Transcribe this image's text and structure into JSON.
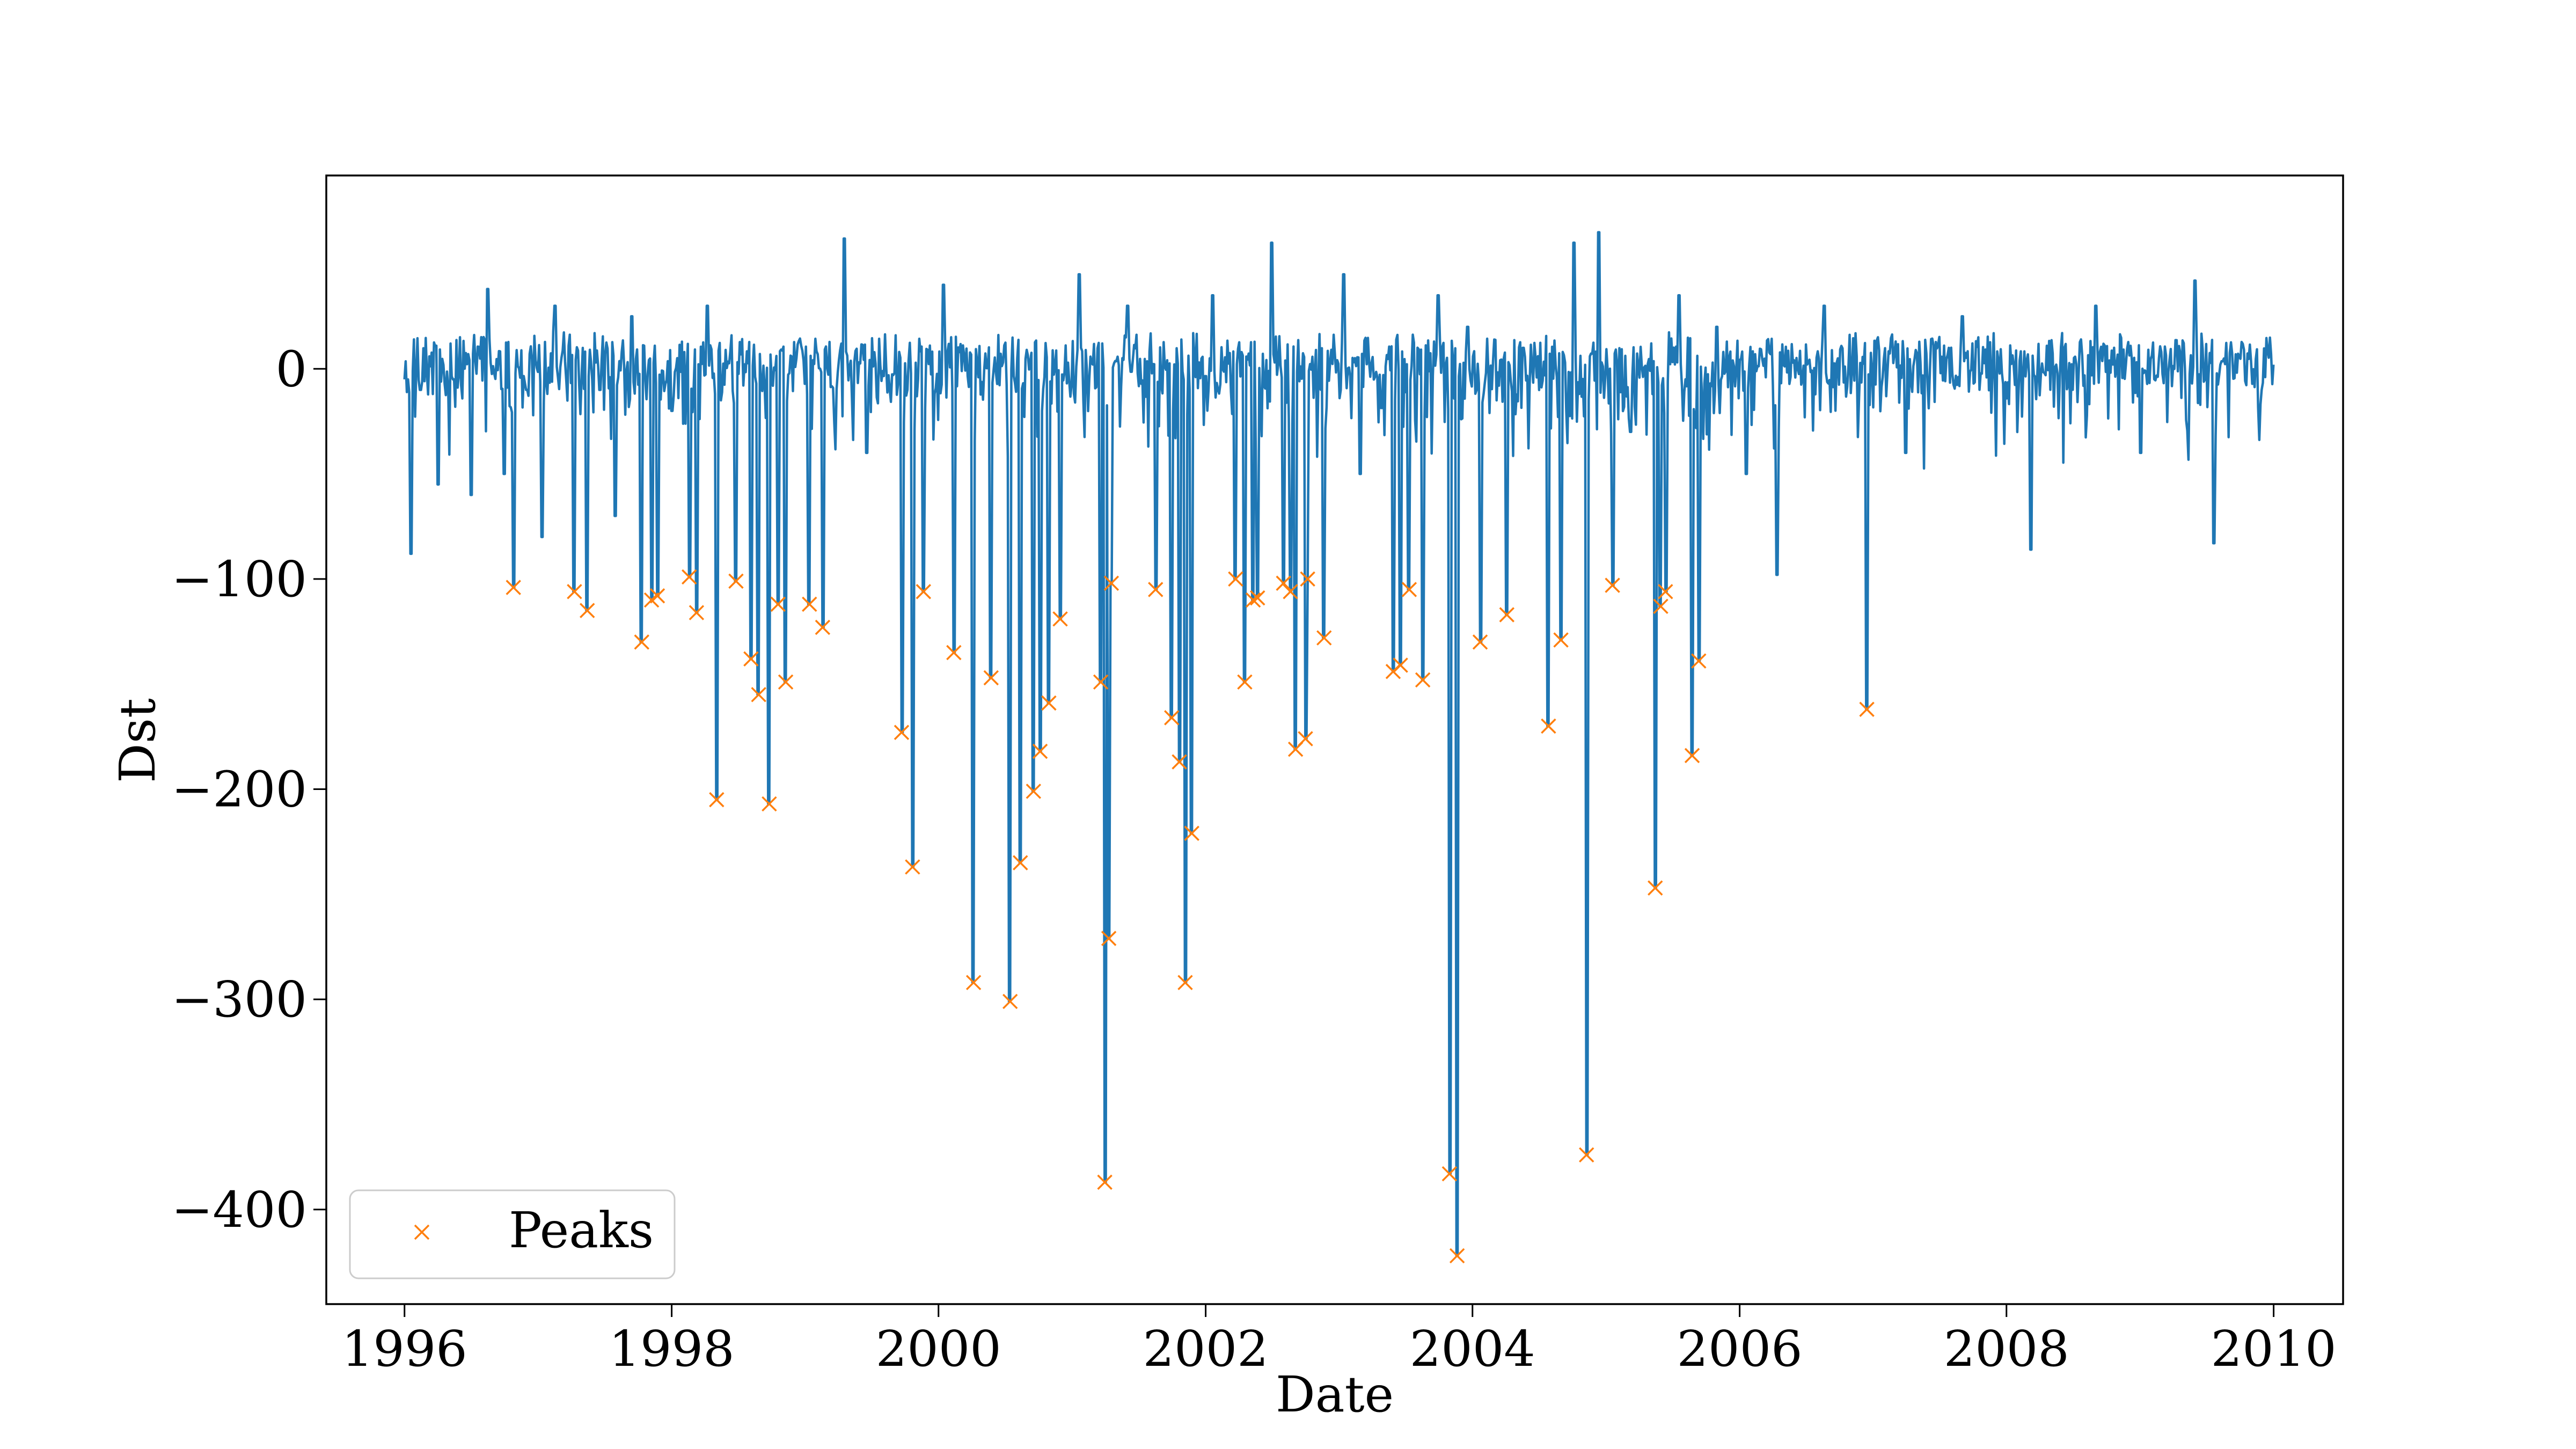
{
  "chart_data": {
    "type": "line",
    "title": "",
    "xlabel": "Date",
    "ylabel": "Dst",
    "xlim": [
      "1995-06-01",
      "2010-07-10"
    ],
    "ylim": [
      -445,
      92
    ],
    "x_ticks": [
      "1996",
      "1998",
      "2000",
      "2002",
      "2004",
      "2006",
      "2008",
      "2010"
    ],
    "y_ticks": [
      0,
      -100,
      -200,
      -300,
      -400
    ],
    "y_tick_labels": [
      "0",
      "−100",
      "−200",
      "−300",
      "−400"
    ],
    "grid": false,
    "legend": {
      "position": "lower-left",
      "entries": [
        "Peaks"
      ]
    },
    "colors": {
      "series": "#1f77b4",
      "peaks": "#ff7f0e",
      "axes": "#000000",
      "legend_border": "#cccccc"
    },
    "series": [
      {
        "type": "line",
        "color": "#1f77b4",
        "points": [
          [
            "1996-01-01",
            -5
          ],
          [
            "1996-01-20",
            -88
          ],
          [
            "1996-02-15",
            -10
          ],
          [
            "1996-04-01",
            -55
          ],
          [
            "1996-05-15",
            -5
          ],
          [
            "1996-07-01",
            -60
          ],
          [
            "1996-08-15",
            38
          ],
          [
            "1996-09-30",
            -50
          ],
          [
            "1996-10-25",
            -104
          ],
          [
            "1996-12-01",
            -10
          ],
          [
            "1997-01-10",
            -80
          ],
          [
            "1997-02-15",
            30
          ],
          [
            "1997-04-10",
            -106
          ],
          [
            "1997-05-15",
            -115
          ],
          [
            "1997-06-20",
            -10
          ],
          [
            "1997-08-01",
            -70
          ],
          [
            "1997-09-15",
            25
          ],
          [
            "1997-10-11",
            -130
          ],
          [
            "1997-11-07",
            -110
          ],
          [
            "1997-11-23",
            -108
          ],
          [
            "1998-01-01",
            -20
          ],
          [
            "1998-02-18",
            -99
          ],
          [
            "1998-03-10",
            -116
          ],
          [
            "1998-04-10",
            30
          ],
          [
            "1998-05-04",
            -205
          ],
          [
            "1998-06-26",
            -101
          ],
          [
            "1998-08-06",
            -138
          ],
          [
            "1998-08-27",
            -155
          ],
          [
            "1998-09-25",
            -207
          ],
          [
            "1998-10-19",
            -112
          ],
          [
            "1998-11-09",
            -149
          ],
          [
            "1999-01-13",
            -112
          ],
          [
            "1999-02-18",
            -123
          ],
          [
            "1999-04-17",
            62
          ],
          [
            "1999-06-20",
            -40
          ],
          [
            "1999-09-22",
            -173
          ],
          [
            "1999-10-22",
            -237
          ],
          [
            "1999-11-21",
            -106
          ],
          [
            "2000-01-15",
            40
          ],
          [
            "2000-02-12",
            -135
          ],
          [
            "2000-04-06",
            -292
          ],
          [
            "2000-05-24",
            -147
          ],
          [
            "2000-07-15",
            -301
          ],
          [
            "2000-08-12",
            -235
          ],
          [
            "2000-09-17",
            -201
          ],
          [
            "2000-10-05",
            -182
          ],
          [
            "2000-10-29",
            -159
          ],
          [
            "2000-11-29",
            -119
          ],
          [
            "2001-01-20",
            45
          ],
          [
            "2001-03-20",
            -149
          ],
          [
            "2001-03-31",
            -387
          ],
          [
            "2001-04-11",
            -271
          ],
          [
            "2001-04-18",
            -102
          ],
          [
            "2001-06-01",
            30
          ],
          [
            "2001-08-17",
            -105
          ],
          [
            "2001-09-30",
            -166
          ],
          [
            "2001-10-21",
            -187
          ],
          [
            "2001-11-06",
            -292
          ],
          [
            "2001-11-24",
            -221
          ],
          [
            "2002-01-20",
            35
          ],
          [
            "2002-03-24",
            -100
          ],
          [
            "2002-04-18",
            -149
          ],
          [
            "2002-05-11",
            -110
          ],
          [
            "2002-05-23",
            -109
          ],
          [
            "2002-07-01",
            60
          ],
          [
            "2002-08-02",
            -102
          ],
          [
            "2002-08-21",
            -106
          ],
          [
            "2002-09-04",
            -181
          ],
          [
            "2002-10-01",
            -176
          ],
          [
            "2002-10-07",
            -100
          ],
          [
            "2002-11-21",
            -128
          ],
          [
            "2003-01-15",
            45
          ],
          [
            "2003-03-01",
            -50
          ],
          [
            "2003-05-29",
            -144
          ],
          [
            "2003-06-18",
            -141
          ],
          [
            "2003-07-12",
            -105
          ],
          [
            "2003-08-18",
            -148
          ],
          [
            "2003-09-30",
            35
          ],
          [
            "2003-10-30",
            -383
          ],
          [
            "2003-11-20",
            -422
          ],
          [
            "2003-12-20",
            20
          ],
          [
            "2004-01-22",
            -130
          ],
          [
            "2004-04-04",
            -117
          ],
          [
            "2004-05-20",
            10
          ],
          [
            "2004-07-27",
            -170
          ],
          [
            "2004-08-30",
            -129
          ],
          [
            "2004-10-05",
            60
          ],
          [
            "2004-11-08",
            -374
          ],
          [
            "2004-12-10",
            65
          ],
          [
            "2005-01-18",
            -103
          ],
          [
            "2005-03-10",
            -30
          ],
          [
            "2005-05-15",
            -247
          ],
          [
            "2005-05-30",
            -113
          ],
          [
            "2005-06-12",
            -106
          ],
          [
            "2005-07-20",
            35
          ],
          [
            "2005-08-24",
            -184
          ],
          [
            "2005-09-11",
            -139
          ],
          [
            "2005-11-01",
            20
          ],
          [
            "2006-01-20",
            -50
          ],
          [
            "2006-04-14",
            -98
          ],
          [
            "2006-08-20",
            30
          ],
          [
            "2006-12-15",
            -162
          ],
          [
            "2007-04-01",
            -40
          ],
          [
            "2007-09-01",
            25
          ],
          [
            "2008-03-09",
            -86
          ],
          [
            "2008-09-01",
            30
          ],
          [
            "2009-01-01",
            -40
          ],
          [
            "2009-06-01",
            42
          ],
          [
            "2009-07-22",
            -83
          ],
          [
            "2010-01-01",
            2
          ]
        ]
      }
    ],
    "peaks": {
      "name": "Peaks",
      "marker": "x",
      "color": "#ff7f0e",
      "points": [
        [
          "1996-10-25",
          -104
        ],
        [
          "1997-04-10",
          -106
        ],
        [
          "1997-05-15",
          -115
        ],
        [
          "1997-10-11",
          -130
        ],
        [
          "1997-11-07",
          -110
        ],
        [
          "1997-11-23",
          -108
        ],
        [
          "1998-02-18",
          -99
        ],
        [
          "1998-03-10",
          -116
        ],
        [
          "1998-05-04",
          -205
        ],
        [
          "1998-06-26",
          -101
        ],
        [
          "1998-08-06",
          -138
        ],
        [
          "1998-08-27",
          -155
        ],
        [
          "1998-09-25",
          -207
        ],
        [
          "1998-10-19",
          -112
        ],
        [
          "1998-11-09",
          -149
        ],
        [
          "1999-01-13",
          -112
        ],
        [
          "1999-02-18",
          -123
        ],
        [
          "1999-09-22",
          -173
        ],
        [
          "1999-10-22",
          -237
        ],
        [
          "1999-11-21",
          -106
        ],
        [
          "2000-02-12",
          -135
        ],
        [
          "2000-04-06",
          -292
        ],
        [
          "2000-05-24",
          -147
        ],
        [
          "2000-07-15",
          -301
        ],
        [
          "2000-08-12",
          -235
        ],
        [
          "2000-09-17",
          -201
        ],
        [
          "2000-10-05",
          -182
        ],
        [
          "2000-10-29",
          -159
        ],
        [
          "2000-11-29",
          -119
        ],
        [
          "2001-03-20",
          -149
        ],
        [
          "2001-03-31",
          -387
        ],
        [
          "2001-04-11",
          -271
        ],
        [
          "2001-04-18",
          -102
        ],
        [
          "2001-08-17",
          -105
        ],
        [
          "2001-09-30",
          -166
        ],
        [
          "2001-10-21",
          -187
        ],
        [
          "2001-11-06",
          -292
        ],
        [
          "2001-11-24",
          -221
        ],
        [
          "2002-03-24",
          -100
        ],
        [
          "2002-04-18",
          -149
        ],
        [
          "2002-05-11",
          -110
        ],
        [
          "2002-05-23",
          -109
        ],
        [
          "2002-08-02",
          -102
        ],
        [
          "2002-08-21",
          -106
        ],
        [
          "2002-09-04",
          -181
        ],
        [
          "2002-10-01",
          -176
        ],
        [
          "2002-10-07",
          -100
        ],
        [
          "2002-11-21",
          -128
        ],
        [
          "2003-05-29",
          -144
        ],
        [
          "2003-06-18",
          -141
        ],
        [
          "2003-07-12",
          -105
        ],
        [
          "2003-08-18",
          -148
        ],
        [
          "2003-10-30",
          -383
        ],
        [
          "2003-11-20",
          -422
        ],
        [
          "2004-01-22",
          -130
        ],
        [
          "2004-04-04",
          -117
        ],
        [
          "2004-07-27",
          -170
        ],
        [
          "2004-08-30",
          -129
        ],
        [
          "2004-11-08",
          -374
        ],
        [
          "2005-01-18",
          -103
        ],
        [
          "2005-05-15",
          -247
        ],
        [
          "2005-05-30",
          -113
        ],
        [
          "2005-06-12",
          -106
        ],
        [
          "2005-08-24",
          -184
        ],
        [
          "2005-09-11",
          -139
        ],
        [
          "2006-12-15",
          -162
        ]
      ]
    }
  }
}
